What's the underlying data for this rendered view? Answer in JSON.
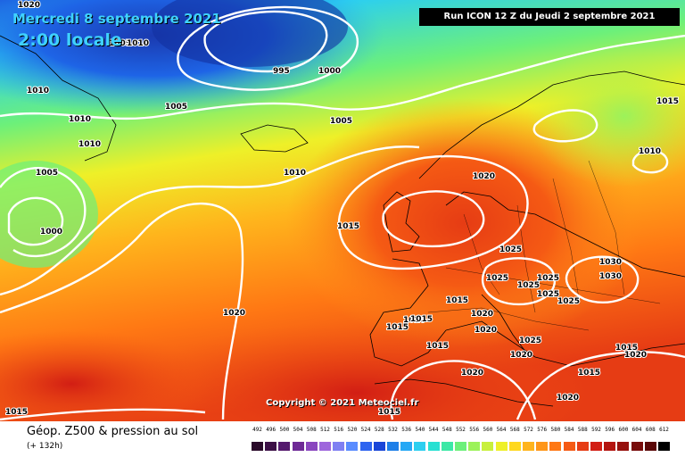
{
  "header": {
    "date": "Mercredi 8 septembre 2021",
    "local_time": "2:00 locale"
  },
  "run_info": "Run ICON 12 Z du Jeudi 2 septembre 2021",
  "copyright": "Copyright © 2021 Meteociel.fr",
  "footer": {
    "title": "Géop. Z500 & pression au sol",
    "lead": "(+ 132h)"
  },
  "color_scale": {
    "labels": [
      "492",
      "496",
      "500",
      "504",
      "508",
      "512",
      "516",
      "520",
      "524",
      "528",
      "532",
      "536",
      "540",
      "544",
      "548",
      "552",
      "556",
      "560",
      "564",
      "568",
      "572",
      "576",
      "580",
      "584",
      "588",
      "592",
      "596",
      "600",
      "604",
      "608",
      "612"
    ],
    "colors": [
      "#2a0a2a",
      "#3c0f46",
      "#551a6e",
      "#6e2a96",
      "#8a46bf",
      "#9e66dc",
      "#7f7ff2",
      "#5a8cff",
      "#2e64f0",
      "#1a46d8",
      "#1e7fe8",
      "#26a8f5",
      "#2ccff0",
      "#28e0d2",
      "#3ce8a6",
      "#6cf07a",
      "#9cf25a",
      "#c8f03c",
      "#eef028",
      "#ffd81e",
      "#ffb41c",
      "#ff9618",
      "#ff7814",
      "#f55a14",
      "#e63c14",
      "#d21e14",
      "#b4140f",
      "#96100d",
      "#780c0b",
      "#5a0808",
      "#000000"
    ]
  },
  "isobars": {
    "labels": [
      "1020",
      "1010",
      "1005",
      "1010",
      "995",
      "1000",
      "1010",
      "1005",
      "1010",
      "1005",
      "1005",
      "1000",
      "1015",
      "1010",
      "1015",
      "1020",
      "1015",
      "1020",
      "1025",
      "1025",
      "1030",
      "1020",
      "1025",
      "1025",
      "1025",
      "1025",
      "1030",
      "1020",
      "1025",
      "1020",
      "1020",
      "1020",
      "1015",
      "1015",
      "1015",
      "1015",
      "1020",
      "1015",
      "1010",
      "1015",
      "1020",
      "1015"
    ],
    "count": 42
  }
}
